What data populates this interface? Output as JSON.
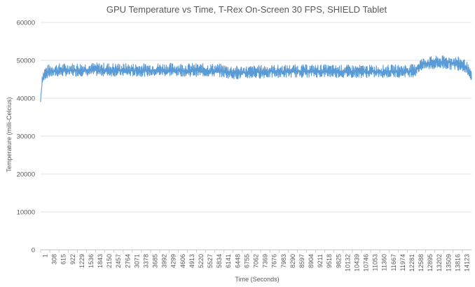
{
  "chart_data": {
    "type": "line",
    "title": "GPU Temperature vs Time, T-Rex On-Screen 30 FPS, SHIELD Tablet",
    "xlabel": "Time (Seconds)",
    "ylabel": "Temperature (milli-Celcius)",
    "ylim": [
      0,
      60000
    ],
    "yticks": [
      "0",
      "10000",
      "20000",
      "30000",
      "40000",
      "50000",
      "60000"
    ],
    "xlim": [
      1,
      14400
    ],
    "xticks": [
      "1",
      "308",
      "615",
      "922",
      "1229",
      "1536",
      "1843",
      "2150",
      "2457",
      "2764",
      "3071",
      "3378",
      "3685",
      "3992",
      "4299",
      "4606",
      "4913",
      "5220",
      "5527",
      "5834",
      "6141",
      "6448",
      "6755",
      "7062",
      "7369",
      "7676",
      "7983",
      "8290",
      "8597",
      "8904",
      "9211",
      "9518",
      "9825",
      "10132",
      "10439",
      "10746",
      "11053",
      "11360",
      "11667",
      "11974",
      "12281",
      "12588",
      "12895",
      "13202",
      "13509",
      "13816",
      "14123"
    ],
    "grid": true,
    "legend": "none",
    "line_color": "#5b9bd5",
    "series": [
      {
        "values_note": "",
        "x": [
          1,
          50,
          150,
          300,
          600,
          1000,
          1500,
          2000,
          2500,
          3000,
          3500,
          4000,
          4500,
          5000,
          5500,
          6000,
          6300,
          6600,
          7000,
          7500,
          8000,
          8500,
          9000,
          9500,
          10000,
          10500,
          11000,
          11500,
          12000,
          12500,
          12700,
          13000,
          13300,
          13600,
          13900,
          14100,
          14250,
          14400
        ],
        "values": [
          39000,
          44500,
          46500,
          47000,
          47200,
          47300,
          47400,
          47400,
          47300,
          47300,
          47300,
          47400,
          47300,
          47300,
          47200,
          47200,
          46800,
          46700,
          46800,
          47000,
          47000,
          47100,
          47100,
          47100,
          47000,
          47000,
          47000,
          47000,
          47100,
          47200,
          48800,
          49300,
          49500,
          49500,
          49200,
          49000,
          48000,
          45000
        ],
        "band_low": [
          39000,
          43500,
          45000,
          45500,
          45700,
          45800,
          45800,
          45800,
          45800,
          45700,
          45700,
          45800,
          45800,
          45700,
          45700,
          45600,
          45200,
          45000,
          45100,
          45300,
          45400,
          45500,
          45500,
          45500,
          45400,
          45400,
          45400,
          45400,
          45500,
          45600,
          47200,
          47500,
          47600,
          47600,
          47400,
          47200,
          46500,
          44500
        ],
        "band_high": [
          41000,
          47000,
          48500,
          49000,
          49200,
          49300,
          49400,
          49400,
          49300,
          49200,
          49200,
          49300,
          49300,
          49200,
          49200,
          49100,
          48700,
          48500,
          48600,
          48800,
          48800,
          48900,
          48900,
          48900,
          48800,
          48800,
          48800,
          48800,
          48900,
          49000,
          50500,
          51000,
          51200,
          51200,
          51000,
          50800,
          49500,
          47000
        ]
      }
    ]
  }
}
